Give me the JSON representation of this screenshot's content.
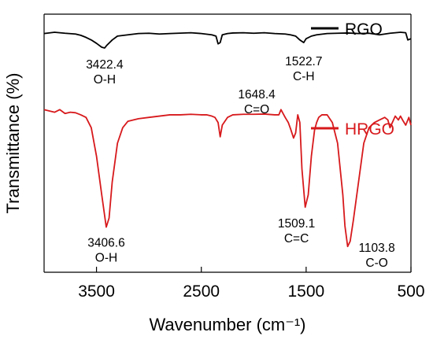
{
  "chart_data": {
    "type": "line",
    "xlabel": "Wavenumber (cm⁻¹)",
    "ylabel": "Transmittance (%)",
    "x_reversed": true,
    "xlim": [
      4000,
      500
    ],
    "y_ticks_shown": false,
    "xticks": [
      3500,
      2500,
      1500,
      500
    ],
    "tick_labels": [
      "3500",
      "2500",
      "1500",
      "500"
    ],
    "legend_placement": "inside-right",
    "ylim": [
      0,
      100
    ],
    "series": [
      {
        "name": "RGO",
        "color": "#000000",
        "x": [
          4000,
          3900,
          3800,
          3700,
          3650,
          3600,
          3550,
          3500,
          3450,
          3422,
          3400,
          3350,
          3300,
          3200,
          3100,
          3000,
          2900,
          2800,
          2600,
          2500,
          2400,
          2360,
          2340,
          2320,
          2300,
          2250,
          2200,
          2100,
          2000,
          1900,
          1800,
          1700,
          1650,
          1600,
          1560,
          1523,
          1500,
          1450,
          1400,
          1300,
          1200,
          1100,
          1000,
          900,
          800,
          700,
          600,
          550,
          530,
          500
        ],
        "y": [
          92.5,
          93.0,
          92.6,
          92.3,
          91.8,
          91.0,
          90.0,
          88.7,
          87.2,
          86.9,
          88.0,
          90.0,
          91.5,
          92.0,
          92.5,
          92.6,
          92.3,
          92.5,
          92.8,
          92.5,
          92.0,
          91.5,
          88.5,
          89.0,
          92.0,
          92.5,
          92.7,
          92.8,
          92.6,
          92.8,
          92.5,
          92.3,
          92.0,
          91.5,
          90.0,
          89.0,
          90.5,
          91.5,
          92.0,
          92.5,
          92.6,
          92.7,
          92.5,
          92.6,
          92.0,
          92.6,
          93.0,
          92.8,
          90.0,
          90.5
        ]
      },
      {
        "name": "HRGO",
        "color": "#d7191c",
        "x": [
          4000,
          3900,
          3850,
          3800,
          3750,
          3700,
          3650,
          3600,
          3550,
          3500,
          3450,
          3407,
          3380,
          3350,
          3300,
          3250,
          3200,
          3100,
          3000,
          2900,
          2800,
          2700,
          2600,
          2500,
          2450,
          2400,
          2370,
          2340,
          2320,
          2300,
          2250,
          2200,
          2100,
          2000,
          1900,
          1800,
          1760,
          1740,
          1700,
          1670,
          1648,
          1620,
          1600,
          1580,
          1560,
          1540,
          1509,
          1480,
          1450,
          1420,
          1400,
          1380,
          1350,
          1300,
          1250,
          1200,
          1150,
          1130,
          1104,
          1080,
          1050,
          1000,
          950,
          900,
          850,
          800,
          750,
          720,
          700,
          650,
          620,
          600,
          580,
          550,
          520,
          500
        ],
        "y": [
          63.0,
          62.0,
          63.0,
          61.5,
          62.0,
          61.8,
          61.0,
          60.0,
          56.0,
          45.0,
          30.0,
          17.5,
          21.0,
          35.0,
          50.0,
          56.0,
          58.5,
          59.5,
          60.0,
          60.5,
          61.0,
          61.0,
          61.2,
          61.0,
          61.0,
          60.5,
          60.0,
          58.0,
          52.5,
          57.0,
          60.0,
          61.0,
          61.2,
          61.2,
          61.3,
          61.0,
          61.0,
          63.0,
          60.0,
          58.0,
          55.5,
          52.0,
          54.0,
          61.0,
          58.0,
          40.0,
          25.2,
          30.0,
          45.0,
          55.0,
          58.0,
          60.0,
          61.0,
          61.0,
          58.0,
          50.0,
          30.0,
          18.0,
          10.0,
          12.0,
          20.0,
          35.0,
          50.0,
          56.0,
          58.0,
          59.0,
          60.0,
          59.0,
          56.0,
          60.5,
          59.0,
          60.5,
          59.0,
          57.0,
          60.0,
          57.0
        ]
      }
    ],
    "annotations": [
      {
        "value": "3422.4",
        "group": "O-H",
        "series": "RGO",
        "x": 3422.4
      },
      {
        "value": "1522.7",
        "group": "C-H",
        "series": "RGO",
        "x": 1522.7
      },
      {
        "value": "1648.4",
        "group": "C=O",
        "series": "HRGO",
        "x": 1648.4
      },
      {
        "value": "3406.6",
        "group": "O-H",
        "series": "HRGO",
        "x": 3406.6
      },
      {
        "value": "1509.1",
        "group": "C=C",
        "series": "HRGO",
        "x": 1509.1
      },
      {
        "value": "1103.8",
        "group": "C-O",
        "series": "HRGO",
        "x": 1103.8
      }
    ]
  }
}
